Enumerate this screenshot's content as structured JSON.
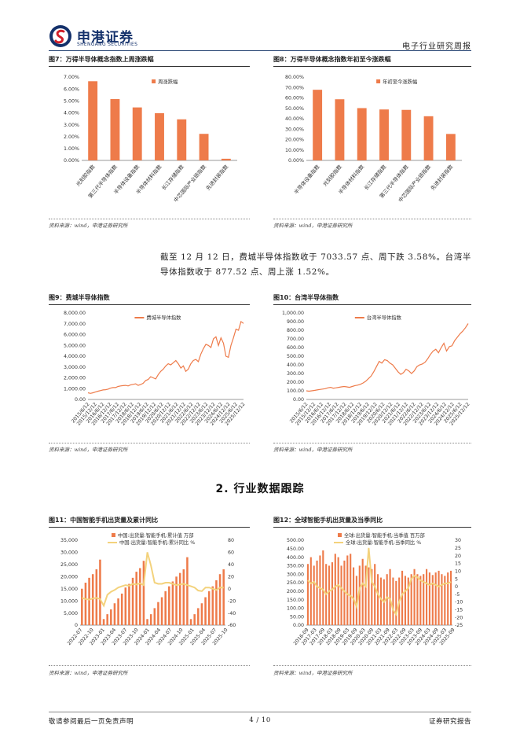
{
  "header": {
    "logo_name": "申港证券",
    "logo_sub": "SHENGANG SECURITIES",
    "report_type": "电子行业研究周报"
  },
  "paragraph": "截至 12 月 12 日，费城半导体指数收于 7033.57 点、周下跌 3.58%。台湾半导体指数收于 877.52 点、周上涨 1.52%。",
  "section_heading": "2. 行业数据跟踪",
  "footer": {
    "left": "敬请参阅最后一页免责声明",
    "page": "4 / 10",
    "right": "证券研究报告"
  },
  "colors": {
    "bar": "#ee7b4a",
    "line_yellow": "#f3d27c",
    "navy": "#14316b",
    "logo_red": "#d0202a"
  },
  "figures": {
    "fig7": {
      "title": "图7：万得半导体概念指数上周涨跌幅",
      "source": "资料来源：wind，申港证券研究所",
      "chart_data": {
        "type": "bar",
        "categories": [
          "光刻胶指数",
          "第三代半导体指数",
          "半导体设备指数",
          "半导体材料指数",
          "长江存储指数",
          "中芯国际产业链指数",
          "先进封装指数"
        ],
        "series": [
          {
            "name": "周涨跌幅",
            "values": [
              6.65,
              5.15,
              4.45,
              3.97,
              3.45,
              2.23,
              0.14
            ]
          }
        ],
        "ylim": [
          0,
          7
        ],
        "yticks": [
          "0.00%",
          "1.00%",
          "2.00%",
          "3.00%",
          "4.00%",
          "5.00%",
          "6.00%",
          "7.00%"
        ],
        "legend": "top-center"
      }
    },
    "fig8": {
      "title": "图8：万得半导体概念指数年初至今涨跌幅",
      "source": "资料来源：wind，申港证券研究所",
      "chart_data": {
        "type": "bar",
        "categories": [
          "半导体设备指数",
          "光刻胶指数",
          "半导体材料指数",
          "长江存储指数",
          "第三代半导体指数",
          "中芯国际产业链指数",
          "先进封装指数"
        ],
        "series": [
          {
            "name": "年初至今涨跌幅",
            "values": [
              67.8,
              58.7,
              50.2,
              48.9,
              48.5,
              42.4,
              25.4
            ]
          }
        ],
        "ylim": [
          0,
          80
        ],
        "yticks": [
          "0.00%",
          "10.00%",
          "20.00%",
          "30.00%",
          "40.00%",
          "50.00%",
          "60.00%",
          "70.00%",
          "80.00%"
        ],
        "legend": "top-center"
      }
    },
    "fig9": {
      "title": "图9：费城半导体指数",
      "source": "资料来源：wind，申港证券研究所",
      "chart_data": {
        "type": "line",
        "series": [
          {
            "name": "费城半导体指数",
            "values": [
              620,
              560,
              620,
              700,
              760,
              820,
              880,
              900,
              950,
              1050,
              1100,
              1100,
              1200,
              1250,
              1280,
              1300,
              1250,
              1350,
              1400,
              1450,
              1300,
              1380,
              1500,
              1750,
              1850,
              2100,
              2000,
              1900,
              2300,
              2600,
              2800,
              3100,
              3300,
              3200,
              3400,
              3600,
              3300,
              2900,
              3100,
              2600,
              2800,
              3300,
              3600,
              3700,
              3500,
              4200,
              4700,
              5100,
              5000,
              4800,
              5600,
              5800,
              5000,
              5700,
              5200,
              4000,
              3900,
              5000,
              5700,
              6500,
              6400,
              7200,
              7033.57
            ]
          }
        ],
        "ylim": [
          0,
          8000
        ],
        "yticks": [
          "0.00",
          "1,000.00",
          "2,000.00",
          "3,000.00",
          "4,000.00",
          "5,000.00",
          "6,000.00",
          "7,000.00",
          "8,000.00"
        ],
        "xticks": [
          "2015/6/12",
          "2015/12/12",
          "2016/6/12",
          "2016/12/12",
          "2017/6/12",
          "2017/12/12",
          "2018/6/12",
          "2018/12/12",
          "2019/6/12",
          "2019/12/12",
          "2020/6/12",
          "2020/12/12",
          "2021/6/12",
          "2021/12/12",
          "2022/6/12",
          "2022/12/12",
          "2023/6/12",
          "2023/12/12",
          "2024/6/12",
          "2024/12/12",
          "2025/6/12",
          "2025/12/12"
        ],
        "legend": "top-center"
      }
    },
    "fig10": {
      "title": "图10：台湾半导体指数",
      "source": "资料来源：wind，申港证券研究所",
      "chart_data": {
        "type": "line",
        "series": [
          {
            "name": "台湾半导体指数",
            "values": [
              100,
              95,
              100,
              105,
              110,
              115,
              120,
              125,
              135,
              140,
              130,
              135,
              140,
              145,
              150,
              145,
              140,
              150,
              160,
              165,
              175,
              190,
              210,
              240,
              270,
              320,
              380,
              440,
              420,
              460,
              450,
              420,
              400,
              360,
              320,
              290,
              310,
              350,
              330,
              300,
              330,
              380,
              400,
              410,
              430,
              470,
              520,
              560,
              580,
              540,
              600,
              650,
              560,
              610,
              620,
              680,
              720,
              760,
              790,
              830,
              877.52
            ]
          }
        ],
        "ylim": [
          0,
          1000
        ],
        "yticks": [
          "0.00",
          "100.00",
          "200.00",
          "300.00",
          "400.00",
          "500.00",
          "600.00",
          "700.00",
          "800.00",
          "900.00",
          "1,000.00"
        ],
        "xticks": [
          "2015/6/12",
          "2015/12/12",
          "2016/6/12",
          "2016/12/12",
          "2017/6/12",
          "2017/12/12",
          "2018/6/12",
          "2018/12/12",
          "2019/6/12",
          "2019/12/12",
          "2020/6/12",
          "2020/12/12",
          "2021/6/12",
          "2021/12/12",
          "2022/6/12",
          "2022/12/12",
          "2023/6/12",
          "2023/12/12",
          "2024/6/12",
          "2024/12/12",
          "2025/6/12",
          "2025/12/12"
        ],
        "legend": "top-center"
      }
    },
    "fig11": {
      "title": "图11：中国智能手机出货量及累计同比",
      "source": "资料来源：wind，申港证券研究所",
      "chart_data": {
        "type": "bar",
        "series": [
          {
            "name": "中国:出货量:智能手机:累计值 万部",
            "axis": "left",
            "values": [
              15000,
              17500,
              19500,
              21000,
              23000,
              27000,
              2500,
              4500,
              6500,
              9000,
              11000,
              13000,
              15500,
              17000,
              19500,
              22000,
              23500,
              26500,
              2500,
              4500,
              7000,
              9500,
              11500,
              14000,
              16000,
              18000,
              20000,
              21500,
              23000,
              28000,
              2500,
              4500,
              7000,
              9000,
              11500,
              14000,
              16000,
              18500,
              21000,
              23000
            ]
          },
          {
            "name": "中国:出货量:智能手机:累计同比 %",
            "axis": "right",
            "values": [
              -15,
              -17,
              -18,
              -16,
              -15,
              -17,
              -28,
              -10,
              -5,
              -2,
              2,
              4,
              6,
              5,
              8,
              7,
              9,
              6,
              60,
              38,
              10,
              8,
              8,
              10,
              10,
              8,
              6,
              7,
              8,
              6,
              4,
              2,
              -3,
              -4,
              2,
              2,
              0,
              -2,
              2,
              2
            ]
          }
        ],
        "ylim_left": [
          0,
          35000
        ],
        "ylim_right": [
          -60,
          80
        ],
        "yticks_left": [
          "0",
          "5,000",
          "10,000",
          "15,000",
          "20,000",
          "25,000",
          "30,000",
          "35,000"
        ],
        "yticks_right": [
          "-60",
          "-40",
          "-20",
          "0",
          "20",
          "40",
          "60",
          "80"
        ],
        "xticks": [
          "2022-07",
          "2022-10",
          "2023-01",
          "2023-04",
          "2023-07",
          "2023-10",
          "2024-01",
          "2024-04",
          "2024-07",
          "2024-10",
          "2025-01",
          "2025-04",
          "2025-07",
          "2025-10"
        ],
        "legend": "top-center"
      }
    },
    "fig12": {
      "title": "图12：全球智能手机出货量及当季同比",
      "source": "资料来源：wind，申港证券研究所",
      "chart_data": {
        "type": "bar",
        "series": [
          {
            "name": "全球:出货量:智能手机:当季值 百万部",
            "axis": "left",
            "values": [
              360,
              400,
              350,
              380,
              410,
              440,
              360,
              350,
              370,
              420,
              400,
              350,
              380,
              410,
              420,
              340,
              290,
              350,
              390,
              350,
              340,
              330,
              360,
              300,
              280,
              270,
              300,
              330,
              280,
              260,
              280,
              320,
              290,
              280,
              300,
              330,
              300,
              290,
              300,
              330,
              310,
              295,
              310,
              320,
              300,
              290,
              310,
              320
            ]
          },
          {
            "name": "全球:出货量:智能手机:当季同比 %",
            "axis": "right",
            "values": [
              4,
              2,
              3,
              0,
              -1,
              -2,
              -5,
              -3,
              -2,
              0,
              1,
              -1,
              -3,
              -5,
              -6,
              -8,
              -13,
              -1,
              2,
              0,
              25,
              3,
              0,
              -5,
              -8,
              -10,
              -7,
              -8,
              -15,
              -18,
              -10,
              -5,
              -3,
              -1,
              5,
              7,
              6,
              4,
              3,
              2,
              1,
              2,
              1,
              0,
              1,
              2,
              2,
              3
            ]
          }
        ],
        "ylim_left": [
          0,
          500
        ],
        "ylim_right": [
          -25,
          30
        ],
        "yticks_left": [
          "0.00",
          "50.00",
          "100.00",
          "150.00",
          "200.00",
          "250.00",
          "300.00",
          "350.00",
          "400.00",
          "450.00",
          "500.00"
        ],
        "yticks_right": [
          "-25",
          "-20",
          "-15",
          "-10",
          "-5",
          "0",
          "5",
          "10",
          "15",
          "20",
          "25",
          "30"
        ],
        "xticks": [
          "2016-09",
          "2017-03",
          "2017-09",
          "2018-03",
          "2018-09",
          "2019-03",
          "2019-09",
          "2020-03",
          "2020-09",
          "2021-03",
          "2021-09",
          "2022-03",
          "2022-09",
          "2023-03",
          "2023-09",
          "2024-03",
          "2024-09",
          "2025-03",
          "2025-09"
        ],
        "legend": "top-center"
      }
    }
  }
}
